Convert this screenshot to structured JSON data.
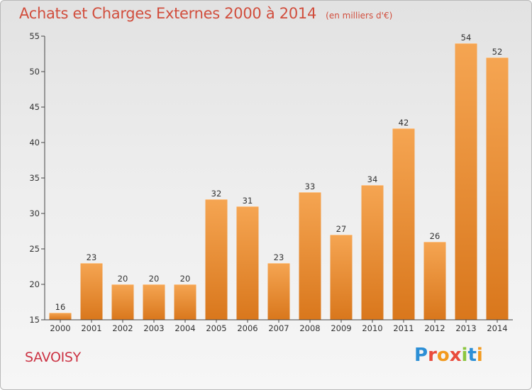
{
  "header": {
    "title": "Achats et Charges Externes 2000 à 2014",
    "subtitle": "(en milliers d'€)"
  },
  "footer": {
    "place": "SAVOISY",
    "brand": "Proxiti",
    "brand_colors": [
      "#2c8fd6",
      "#e94b3c",
      "#f29a1f",
      "#e94b3c",
      "#8cc63f",
      "#2c8fd6",
      "#f29a1f"
    ]
  },
  "colors": {
    "bar_top": "#f5a552",
    "bar_bottom": "#d9771c",
    "title": "#d14e3d"
  },
  "chart_data": {
    "type": "bar",
    "title": "Achats et Charges Externes 2000 à 2014",
    "subtitle": "(en milliers d'€)",
    "categories": [
      "2000",
      "2001",
      "2002",
      "2003",
      "2004",
      "2005",
      "2006",
      "2007",
      "2008",
      "2009",
      "2010",
      "2011",
      "2012",
      "2013",
      "2014"
    ],
    "values": [
      16,
      23,
      20,
      20,
      20,
      32,
      31,
      23,
      33,
      27,
      34,
      42,
      26,
      54,
      52
    ],
    "ylim": [
      15,
      55
    ],
    "yticks": [
      15,
      20,
      25,
      30,
      35,
      40,
      45,
      50,
      55
    ],
    "grid": false,
    "data_labels": true
  }
}
